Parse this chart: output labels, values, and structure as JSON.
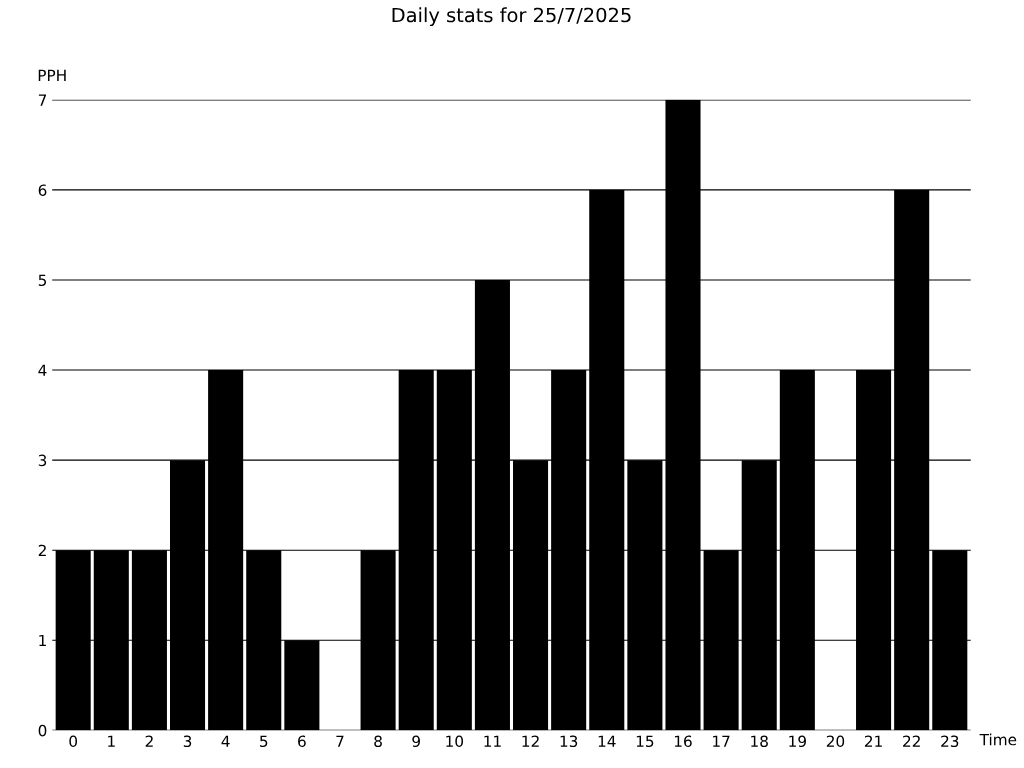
{
  "chart_data": {
    "type": "bar",
    "title": "Daily stats for 25/7/2025",
    "xlabel": "Time",
    "ylabel": "PPH",
    "categories": [
      "0",
      "1",
      "2",
      "3",
      "4",
      "5",
      "6",
      "7",
      "8",
      "9",
      "10",
      "11",
      "12",
      "13",
      "14",
      "15",
      "16",
      "17",
      "18",
      "19",
      "20",
      "21",
      "22",
      "23"
    ],
    "values": [
      2,
      2,
      2,
      3,
      4,
      2,
      1,
      0,
      2,
      4,
      4,
      5,
      3,
      4,
      6,
      3,
      7,
      2,
      3,
      4,
      0,
      4,
      6,
      2
    ],
    "color": "#000000",
    "ylim": [
      0,
      7
    ],
    "yticks": [
      0,
      1,
      2,
      3,
      4,
      5,
      6,
      7
    ],
    "grid": "y"
  }
}
